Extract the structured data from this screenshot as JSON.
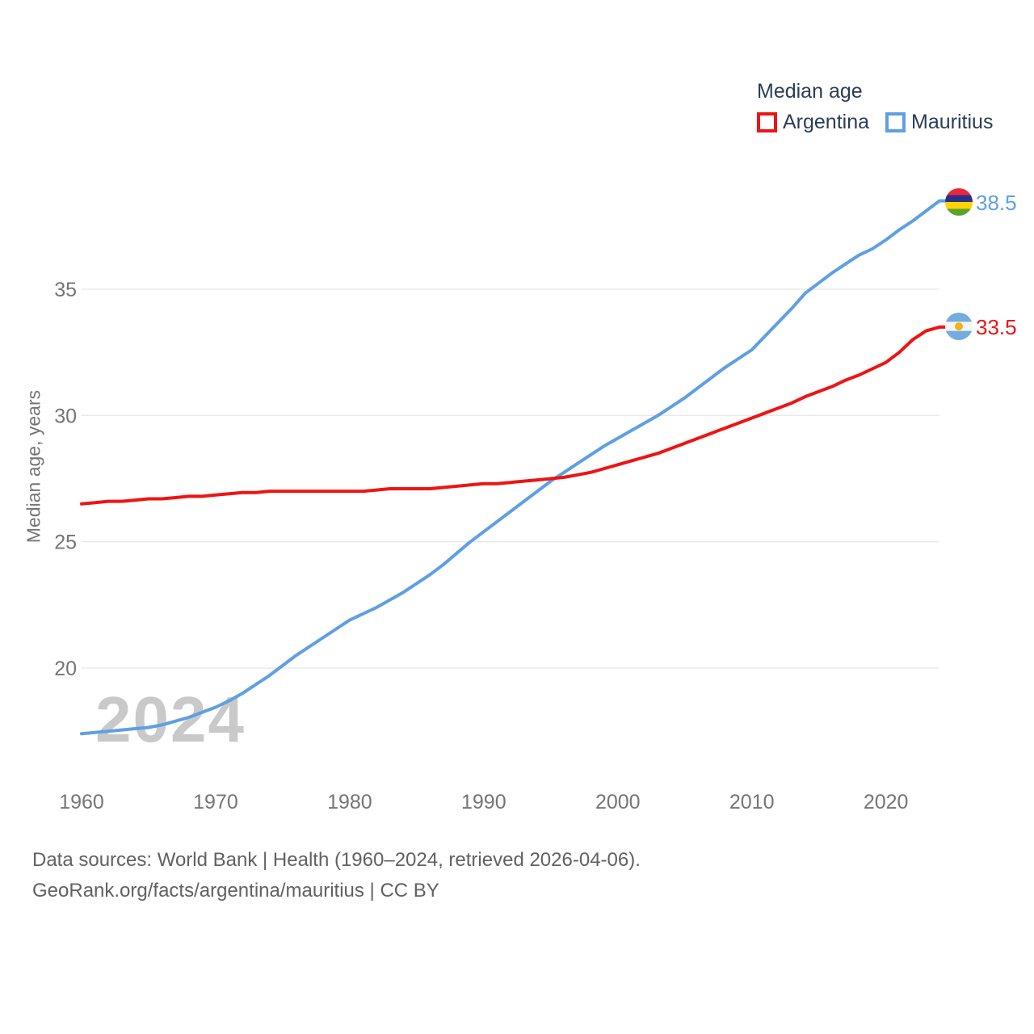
{
  "legend": {
    "title": "Median age",
    "items": [
      {
        "label": "Argentina",
        "color": "#ee1414"
      },
      {
        "label": "Mauritius",
        "color": "#5f9fe3"
      }
    ]
  },
  "end_labels": [
    {
      "country": "Mauritius",
      "value": "38.5",
      "color": "#5f9fe3"
    },
    {
      "country": "Argentina",
      "value": "33.5",
      "color": "#ee1414"
    }
  ],
  "watermark": "2024",
  "footer": {
    "line1": "Data sources: World Bank | Health (1960–2024, retrieved 2026-04-06).",
    "line2": "GeoRank.org/facts/argentina/mauritius | CC BY"
  },
  "chart_data": {
    "type": "line",
    "title": "Median age",
    "xlabel": "",
    "ylabel": "Median age, years",
    "xlim": [
      1960,
      2024
    ],
    "ylim": [
      17,
      39
    ],
    "xticks": [
      1960,
      1970,
      1980,
      1990,
      2000,
      2010,
      2020
    ],
    "yticks": [
      20,
      25,
      30,
      35
    ],
    "grid": true,
    "legend_position": "top-right",
    "grid_color": "#e8e8e8",
    "axis_text_color": "#757575",
    "years": [
      1960,
      1961,
      1962,
      1963,
      1964,
      1965,
      1966,
      1967,
      1968,
      1969,
      1970,
      1971,
      1972,
      1973,
      1974,
      1975,
      1976,
      1977,
      1978,
      1979,
      1980,
      1981,
      1982,
      1983,
      1984,
      1985,
      1986,
      1987,
      1988,
      1989,
      1990,
      1991,
      1992,
      1993,
      1994,
      1995,
      1996,
      1997,
      1998,
      1999,
      2000,
      2001,
      2002,
      2003,
      2004,
      2005,
      2006,
      2007,
      2008,
      2009,
      2010,
      2011,
      2012,
      2013,
      2014,
      2015,
      2016,
      2017,
      2018,
      2019,
      2020,
      2021,
      2022,
      2023,
      2024
    ],
    "series": [
      {
        "name": "Mauritius",
        "color": "#5f9fe3",
        "end_value": 38.5,
        "values": [
          17.4,
          17.45,
          17.5,
          17.55,
          17.6,
          17.65,
          17.75,
          17.9,
          18.05,
          18.25,
          18.45,
          18.7,
          19.0,
          19.35,
          19.7,
          20.1,
          20.5,
          20.85,
          21.2,
          21.55,
          21.9,
          22.15,
          22.4,
          22.7,
          23.0,
          23.35,
          23.7,
          24.1,
          24.55,
          25.0,
          25.4,
          25.8,
          26.2,
          26.6,
          27.0,
          27.4,
          27.75,
          28.1,
          28.45,
          28.8,
          29.1,
          29.4,
          29.7,
          30.0,
          30.35,
          30.7,
          31.1,
          31.5,
          31.9,
          32.25,
          32.6,
          33.15,
          33.7,
          34.25,
          34.85,
          35.25,
          35.65,
          36.0,
          36.35,
          36.6,
          36.95,
          37.35,
          37.7,
          38.1,
          38.5
        ]
      },
      {
        "name": "Argentina",
        "color": "#ee1414",
        "end_value": 33.5,
        "values": [
          26.5,
          26.55,
          26.6,
          26.6,
          26.65,
          26.7,
          26.7,
          26.75,
          26.8,
          26.8,
          26.85,
          26.9,
          26.95,
          26.95,
          27.0,
          27.0,
          27.0,
          27.0,
          27.0,
          27.0,
          27.0,
          27.0,
          27.05,
          27.1,
          27.1,
          27.1,
          27.1,
          27.15,
          27.2,
          27.25,
          27.3,
          27.3,
          27.35,
          27.4,
          27.45,
          27.5,
          27.55,
          27.65,
          27.75,
          27.9,
          28.05,
          28.2,
          28.35,
          28.5,
          28.7,
          28.9,
          29.1,
          29.3,
          29.5,
          29.7,
          29.9,
          30.1,
          30.3,
          30.5,
          30.75,
          30.95,
          31.15,
          31.4,
          31.6,
          31.85,
          32.1,
          32.5,
          33.0,
          33.35,
          33.5
        ]
      }
    ]
  }
}
